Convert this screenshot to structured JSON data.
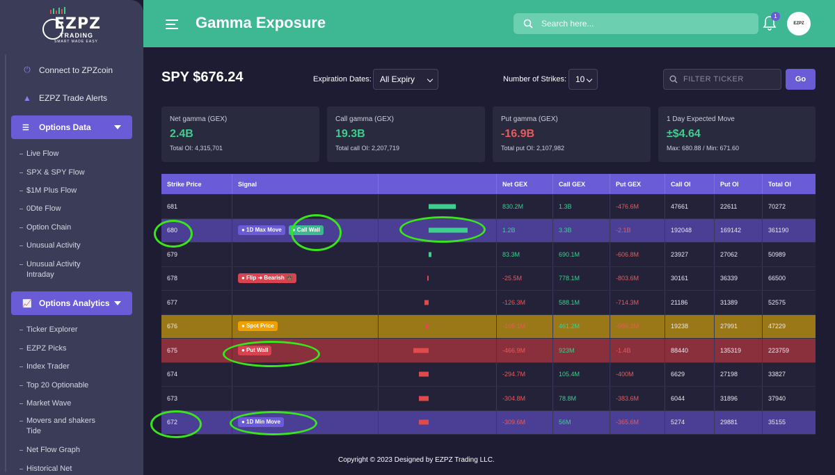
{
  "logo": {
    "main": "EZPZ",
    "sub": "TRADING",
    "tagline": "SMART MADE EASY"
  },
  "sidebar": {
    "top_items": [
      {
        "label": "Connect to ZPZcoin",
        "icon": "plug-icon"
      },
      {
        "label": "EZPZ Trade Alerts",
        "icon": "warning-icon"
      }
    ],
    "sections": [
      {
        "label": "Options Data",
        "items": [
          "Live Flow",
          "SPX & SPY Flow",
          "$1M Plus Flow",
          "0Dte Flow",
          "Option Chain",
          "Unusual Activity",
          "Unusual Activity Intraday"
        ]
      },
      {
        "label": "Options Analytics",
        "items": [
          "Ticker Explorer",
          "EZPZ Picks",
          "Index Trader",
          "Top 20 Optionable",
          "Market Wave",
          "Movers and shakers Tide",
          "Net Flow Graph",
          "Historical Net"
        ]
      }
    ]
  },
  "header": {
    "title": "Gamma Exposure",
    "search_placeholder": "Search here...",
    "notification_count": "1",
    "avatar_text": "EZPZ"
  },
  "controls": {
    "ticker_title": "SPY $676.24",
    "expiration_label": "Expiration Dates:",
    "expiration_value": "All Expiry",
    "strikes_label": "Number of Strikes:",
    "strikes_value": "10",
    "filter_placeholder": "FILTER TICKER",
    "go_label": "Go"
  },
  "cards": [
    {
      "label": "Net gamma (GEX)",
      "value": "2.4B",
      "sub": "Total OI: 4,315,701",
      "color": "#3ecf8e"
    },
    {
      "label": "Call gamma (GEX)",
      "value": "19.3B",
      "sub": "Total call OI: 2,207,719",
      "color": "#3ecf8e"
    },
    {
      "label": "Put gamma (GEX)",
      "value": "-16.9B",
      "sub": "Total put OI: 2,107,982",
      "color": "#e85b5b"
    },
    {
      "label": "1 Day Expected Move",
      "value": "±$4.64",
      "sub": "Max: 680.88 / Min: 671.60",
      "color": "#3ecf8e"
    }
  ],
  "table": {
    "headers": [
      "Strike Price",
      "Signal",
      "",
      "Net GEX",
      "Call GEX",
      "Put GEX",
      "Call OI",
      "Put OI",
      "Total OI"
    ],
    "rows": [
      {
        "strike": "681",
        "signals": [],
        "bar": 0.3,
        "net": "830.2M",
        "call": "1.3B",
        "put": "-476.6M",
        "call_oi": "47661",
        "put_oi": "22611",
        "total_oi": "70272",
        "style": ""
      },
      {
        "strike": "680",
        "signals": [
          {
            "text": "● 1D Max Move",
            "c": "purple"
          },
          {
            "text": "● Call Wall",
            "c": "green"
          }
        ],
        "bar": 0.43,
        "net": "1.2B",
        "call": "3.3B",
        "put": "-2.1B",
        "call_oi": "192048",
        "put_oi": "169142",
        "total_oi": "361190",
        "style": "max"
      },
      {
        "strike": "679",
        "signals": [],
        "bar": 0.03,
        "net": "83.3M",
        "call": "690.1M",
        "put": "-606.8M",
        "call_oi": "23927",
        "put_oi": "27062",
        "total_oi": "50989",
        "style": ""
      },
      {
        "strike": "678",
        "signals": [
          {
            "text": "● Flip ➜ Bearish 🐻",
            "c": "red"
          }
        ],
        "bar": -0.01,
        "net": "-25.5M",
        "call": "778.1M",
        "put": "-803.6M",
        "call_oi": "30161",
        "put_oi": "36339",
        "total_oi": "66500",
        "style": ""
      },
      {
        "strike": "677",
        "signals": [],
        "bar": -0.05,
        "net": "-126.3M",
        "call": "588.1M",
        "put": "-714.3M",
        "call_oi": "21186",
        "put_oi": "31389",
        "total_oi": "52575",
        "style": ""
      },
      {
        "strike": "676",
        "signals": [
          {
            "text": "● Spot Price",
            "c": "orange"
          }
        ],
        "bar": -0.04,
        "net": "-105.1M",
        "call": "461.2M",
        "put": "-566.3M",
        "call_oi": "19238",
        "put_oi": "27991",
        "total_oi": "47229",
        "style": "spot"
      },
      {
        "strike": "675",
        "signals": [
          {
            "text": "● Put Wall",
            "c": "red"
          }
        ],
        "bar": -0.17,
        "net": "-466.9M",
        "call": "923M",
        "put": "-1.4B",
        "call_oi": "88440",
        "put_oi": "135319",
        "total_oi": "223759",
        "style": "putw"
      },
      {
        "strike": "674",
        "signals": [],
        "bar": -0.11,
        "net": "-294.7M",
        "call": "105.4M",
        "put": "-400M",
        "call_oi": "6629",
        "put_oi": "27198",
        "total_oi": "33827",
        "style": ""
      },
      {
        "strike": "673",
        "signals": [],
        "bar": -0.11,
        "net": "-304.8M",
        "call": "78.8M",
        "put": "-383.6M",
        "call_oi": "6044",
        "put_oi": "31896",
        "total_oi": "37940",
        "style": ""
      },
      {
        "strike": "672",
        "signals": [
          {
            "text": "● 1D Min Move",
            "c": "purple"
          }
        ],
        "bar": -0.11,
        "net": "-309.6M",
        "call": "56M",
        "put": "-365.6M",
        "call_oi": "5274",
        "put_oi": "29881",
        "total_oi": "35155",
        "style": "min"
      }
    ]
  },
  "footer": "Copyright © 2023 Designed by EZPZ Trading LLC."
}
